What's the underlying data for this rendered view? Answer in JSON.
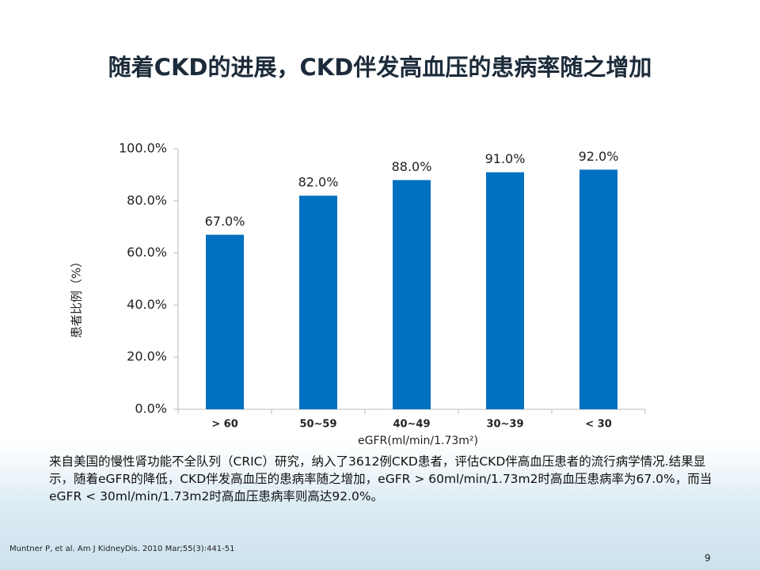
{
  "chart_data": {
    "type": "bar",
    "title": "随着CKD的进展，CKD伴发高血压的患病率随之增加",
    "categories": [
      "> 60",
      "50~59",
      "40~49",
      "30~39",
      "< 30"
    ],
    "values": [
      67.0,
      82.0,
      88.0,
      91.0,
      92.0
    ],
    "value_labels": [
      "67.0%",
      "82.0%",
      "88.0%",
      "91.0%",
      "92.0%"
    ],
    "color": "#0070c0",
    "ylim": [
      0,
      100
    ],
    "yticks": [
      {
        "value": 0,
        "label": "0.0%"
      },
      {
        "value": 20,
        "label": "20.0%"
      },
      {
        "value": 40,
        "label": "40.0%"
      },
      {
        "value": 60,
        "label": "60.0%"
      },
      {
        "value": 80,
        "label": "80.0%"
      },
      {
        "value": 100,
        "label": "100.0%"
      }
    ],
    "y_label": "患者比例（%）",
    "x_label": "eGFR(ml/min/1.73m²)"
  },
  "body_text": "来自美国的慢性肾功能不全队列（CRIC）研究，纳入了3612例CKD患者，评估CKD伴高血压患者的流行病学情况.结果显示，随着eGFR的降低，CKD伴发高血压的患病率随之增加，eGFR > 60ml/min/1.73m2时高血压患病率为67.0%，而当eGFR < 30ml/min/1.73m2时高血压患病率则高达92.0%。",
  "citation": "Muntner P,  et al. Am J KidneyDis. 2010 Mar;55(3):441-51",
  "page_number": "9"
}
